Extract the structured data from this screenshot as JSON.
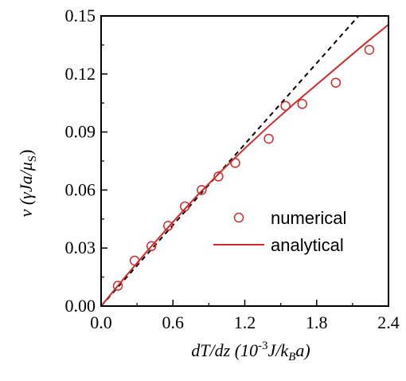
{
  "chart_data": {
    "type": "scatter",
    "xlim": [
      0.0,
      2.4
    ],
    "ylim": [
      0.0,
      0.15
    ],
    "x_ticks": [
      0.0,
      0.6,
      1.2,
      1.8,
      2.4
    ],
    "y_ticks": [
      0.0,
      0.03,
      0.06,
      0.09,
      0.12,
      0.15
    ],
    "x_tick_labels": [
      "0.0",
      "0.6",
      "1.2",
      "1.8",
      "2.4"
    ],
    "y_tick_labels": [
      "0.00",
      "0.03",
      "0.06",
      "0.09",
      "0.12",
      "0.15"
    ],
    "xlabel": {
      "parts": [
        "dT/dz (10",
        "-3",
        "J/k",
        "B",
        "a)"
      ]
    },
    "ylabel": {
      "parts": [
        "v (γJa/μ",
        "S",
        ")"
      ]
    },
    "grid": false,
    "legend_position": "lower-right",
    "series": [
      {
        "name": "numerical",
        "style": "open-circle",
        "color": "#d42a2a",
        "x": [
          0.14,
          0.28,
          0.42,
          0.56,
          0.7,
          0.84,
          0.98,
          1.12,
          1.4,
          1.54,
          1.68,
          1.96,
          2.24
        ],
        "y": [
          0.0105,
          0.0235,
          0.031,
          0.0415,
          0.0515,
          0.06,
          0.067,
          0.074,
          0.0865,
          0.1035,
          0.1045,
          0.1155,
          0.1325
        ]
      },
      {
        "name": "analytical",
        "style": "solid-line",
        "color": "#d42a2a",
        "x": [
          0.0,
          0.2,
          0.4,
          0.6,
          0.8,
          1.0,
          1.2,
          1.4,
          1.6,
          1.8,
          2.0,
          2.2,
          2.4
        ],
        "y": [
          0.0,
          0.015,
          0.0295,
          0.0435,
          0.057,
          0.0695,
          0.0815,
          0.093,
          0.104,
          0.1145,
          0.125,
          0.1355,
          0.1455
        ]
      },
      {
        "style": "dashed-line",
        "color": "#000000",
        "x": [
          0.0,
          2.15
        ],
        "y": [
          0.0,
          0.15
        ]
      }
    ]
  }
}
